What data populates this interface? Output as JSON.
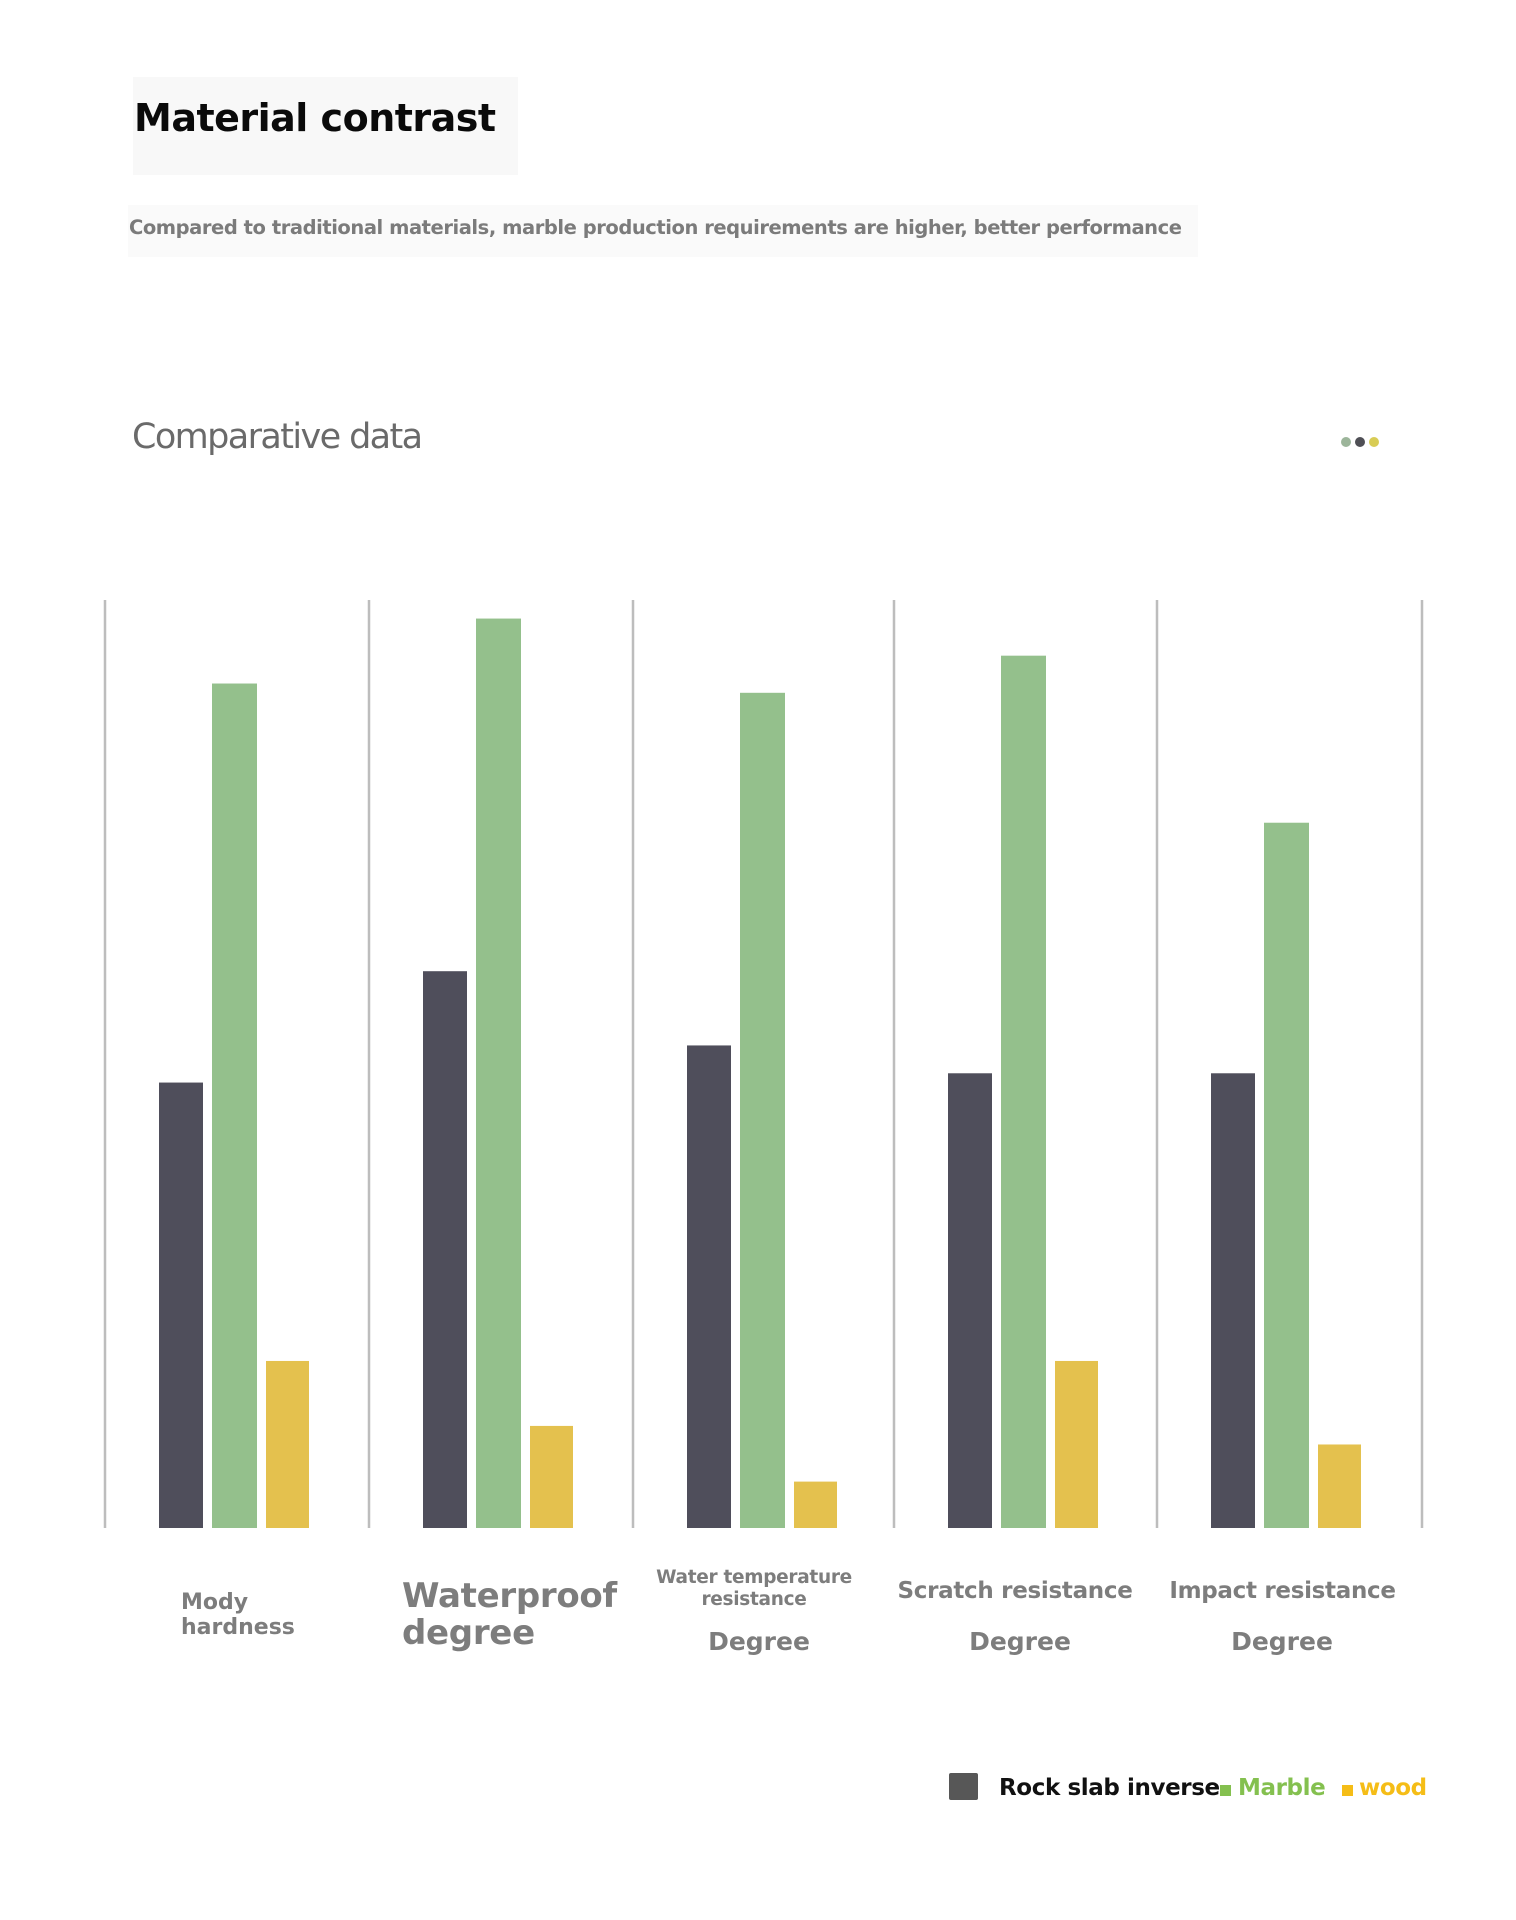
{
  "header": {
    "title": "Material contrast",
    "subtitle": "Compared to traditional materials, marble production requirements are higher, better performance"
  },
  "section": {
    "title": "Comparative data",
    "dots_icon": "more-dots-icon",
    "dot_colors": [
      "#9cb59a",
      "#4f4f55",
      "#d8cc55"
    ]
  },
  "colors": {
    "rock_slab": "#4f4e5b",
    "marble": "#94c08c",
    "wood": "#e4c14e",
    "gridline": "#bdbdbd",
    "legend_rock_square": "#575757",
    "legend_rock_text": "#111111",
    "legend_marble": "#84c04f",
    "legend_wood": "#f5bd17"
  },
  "labels": {
    "cat0_line1": "Mody",
    "cat0_line2": "hardness",
    "cat1_line1": "Waterproof",
    "cat1_line2": "degree",
    "cat2_line1": "Water temperature",
    "cat2_line2": "resistance",
    "cat2_line3": "Degree",
    "cat3_line1": "Scratch resistance",
    "cat3_line2": "Degree",
    "cat4_line1": "Impact resistance",
    "cat4_line2": "Degree"
  },
  "legend": {
    "rock": "Rock slab inverse",
    "marble": "Marble",
    "wood": "wood"
  },
  "chart_data": {
    "type": "bar",
    "title": "Comparative data",
    "xlabel": "",
    "ylabel": "",
    "ylim": [
      0,
      100
    ],
    "grid": "vertical separators between categories",
    "legend_position": "bottom-right",
    "categories": [
      "Mody hardness",
      "Waterproof degree",
      "Water temperature resistance Degree",
      "Scratch resistance Degree",
      "Impact resistance Degree"
    ],
    "series": [
      {
        "name": "Rock slab inverse",
        "values": [
          48,
          60,
          52,
          49,
          49
        ]
      },
      {
        "name": "Marble",
        "values": [
          91,
          98,
          90,
          94,
          76
        ]
      },
      {
        "name": "wood",
        "values": [
          18,
          11,
          5,
          18,
          9
        ]
      }
    ]
  }
}
